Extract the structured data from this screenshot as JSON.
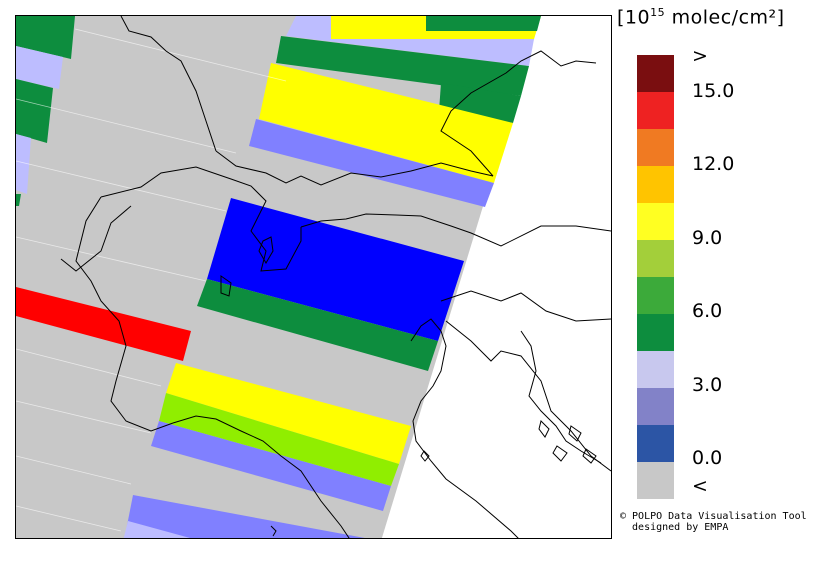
{
  "legend": {
    "unit_main": "[10",
    "unit_exp": "15",
    "unit_rest": " molec/cm²]",
    "colors": [
      "#7a0e10",
      "#ee2222",
      "#f07a22",
      "#ffc400",
      "#ffff22",
      "#a3cf3a",
      "#3caa3a",
      "#0d8d3e",
      "#c8c8ee",
      "#8282c8",
      "#2c55a5",
      "#c8c8c8"
    ],
    "ticks": [
      ">",
      "15.0",
      "12.0",
      "9.0",
      "6.0",
      "3.0",
      "0.0",
      "<"
    ]
  },
  "credit": {
    "line1": "© POLPO Data Visualisation Tool",
    "line2": "  designed by EMPA"
  },
  "map_colors": {
    "gray": "#c8c8c8",
    "blue": "#0000ff",
    "dark_green": "#0d8d3e",
    "yellow": "#ffff00",
    "light_green": "#90ee00",
    "lavender": "#bdbdff",
    "periwinkle": "#8080ff",
    "red": "#ff0000"
  }
}
